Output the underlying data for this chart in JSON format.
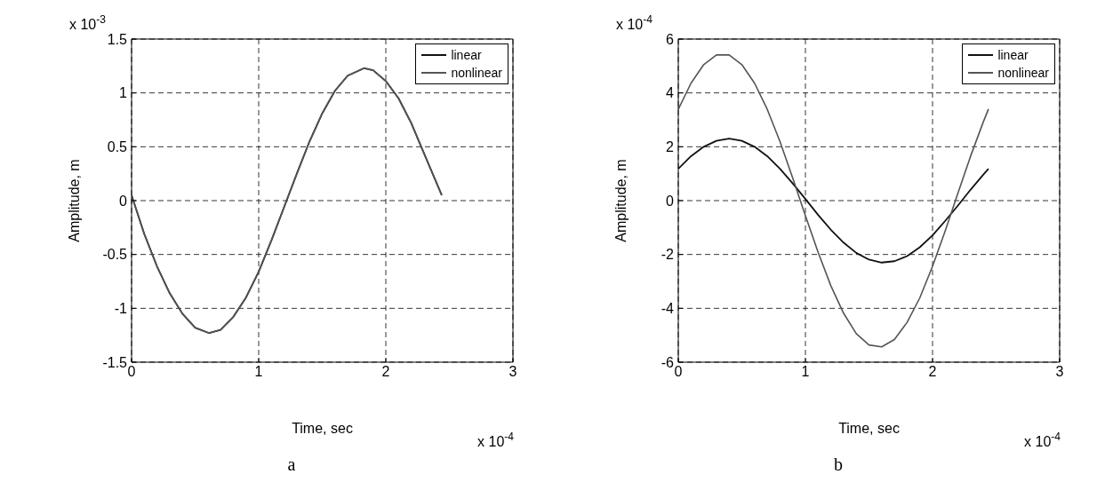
{
  "chart_data": [
    {
      "type": "line",
      "xlabel": "Time, sec",
      "ylabel": "Amplitude, m",
      "annotations": [
        "x 10$^{-3}$",
        "x 10$^{-4}$",
        "a"
      ],
      "x": [
        0,
        0.1,
        0.2,
        0.3,
        0.4,
        0.5,
        0.61,
        0.7,
        0.8,
        0.9,
        1.0,
        1.1,
        1.2,
        1.3,
        1.4,
        1.5,
        1.6,
        1.7,
        1.83,
        1.9,
        2.0,
        2.1,
        2.2,
        2.3,
        2.44
      ],
      "series": [
        {
          "name": "linear",
          "color": "#111111",
          "values": [
            0.05,
            -0.31,
            -0.61,
            -0.86,
            -1.05,
            -1.18,
            -1.23,
            -1.2,
            -1.08,
            -0.9,
            -0.66,
            -0.37,
            -0.06,
            0.25,
            0.55,
            0.81,
            1.02,
            1.16,
            1.23,
            1.21,
            1.11,
            0.95,
            0.72,
            0.44,
            0.05
          ]
        },
        {
          "name": "nonlinear",
          "color": "#555555",
          "values": [
            0.05,
            -0.31,
            -0.61,
            -0.86,
            -1.05,
            -1.18,
            -1.23,
            -1.2,
            -1.08,
            -0.9,
            -0.66,
            -0.37,
            -0.06,
            0.25,
            0.55,
            0.81,
            1.02,
            1.16,
            1.23,
            1.21,
            1.11,
            0.95,
            0.72,
            0.44,
            0.05
          ]
        }
      ],
      "xlim": [
        0,
        3
      ],
      "xticks": [
        0,
        1,
        2,
        3
      ],
      "ylim": [
        -1.5,
        1.5
      ],
      "yticks": [
        -1.5,
        -1,
        -0.5,
        0,
        0.5,
        1,
        1.5
      ],
      "grid": true,
      "legend": "top right"
    },
    {
      "type": "line",
      "xlabel": "Time, sec",
      "ylabel": "Amplitude, m",
      "annotations": [
        "x 10$^{-4}$",
        "x 10$^{-4}$",
        "b"
      ],
      "x": [
        0,
        0.1,
        0.2,
        0.3,
        0.4,
        0.5,
        0.6,
        0.7,
        0.8,
        0.9,
        1.0,
        1.1,
        1.2,
        1.3,
        1.4,
        1.5,
        1.6,
        1.7,
        1.8,
        1.9,
        2.0,
        2.1,
        2.2,
        2.3,
        2.4,
        2.44
      ],
      "series": [
        {
          "name": "linear",
          "color": "#111111",
          "values": [
            1.18,
            1.65,
            2.0,
            2.22,
            2.3,
            2.22,
            2.0,
            1.65,
            1.18,
            0.64,
            0.06,
            -0.53,
            -1.08,
            -1.56,
            -1.94,
            -2.19,
            -2.3,
            -2.25,
            -2.06,
            -1.73,
            -1.29,
            -0.75,
            -0.18,
            0.41,
            0.97,
            1.18
          ]
        },
        {
          "name": "nonlinear",
          "color": "#555555",
          "values": [
            3.39,
            4.36,
            5.05,
            5.41,
            5.41,
            5.05,
            4.36,
            3.39,
            2.19,
            0.84,
            -0.56,
            -1.92,
            -3.16,
            -4.18,
            -4.94,
            -5.36,
            -5.43,
            -5.16,
            -4.52,
            -3.61,
            -2.44,
            -1.12,
            0.28,
            1.66,
            2.93,
            3.4
          ]
        }
      ],
      "xlim": [
        0,
        3
      ],
      "xticks": [
        0,
        1,
        2,
        3
      ],
      "ylim": [
        -6,
        6
      ],
      "yticks": [
        -6,
        -4,
        -2,
        0,
        2,
        4,
        6
      ],
      "grid": true,
      "legend": "top right"
    }
  ]
}
